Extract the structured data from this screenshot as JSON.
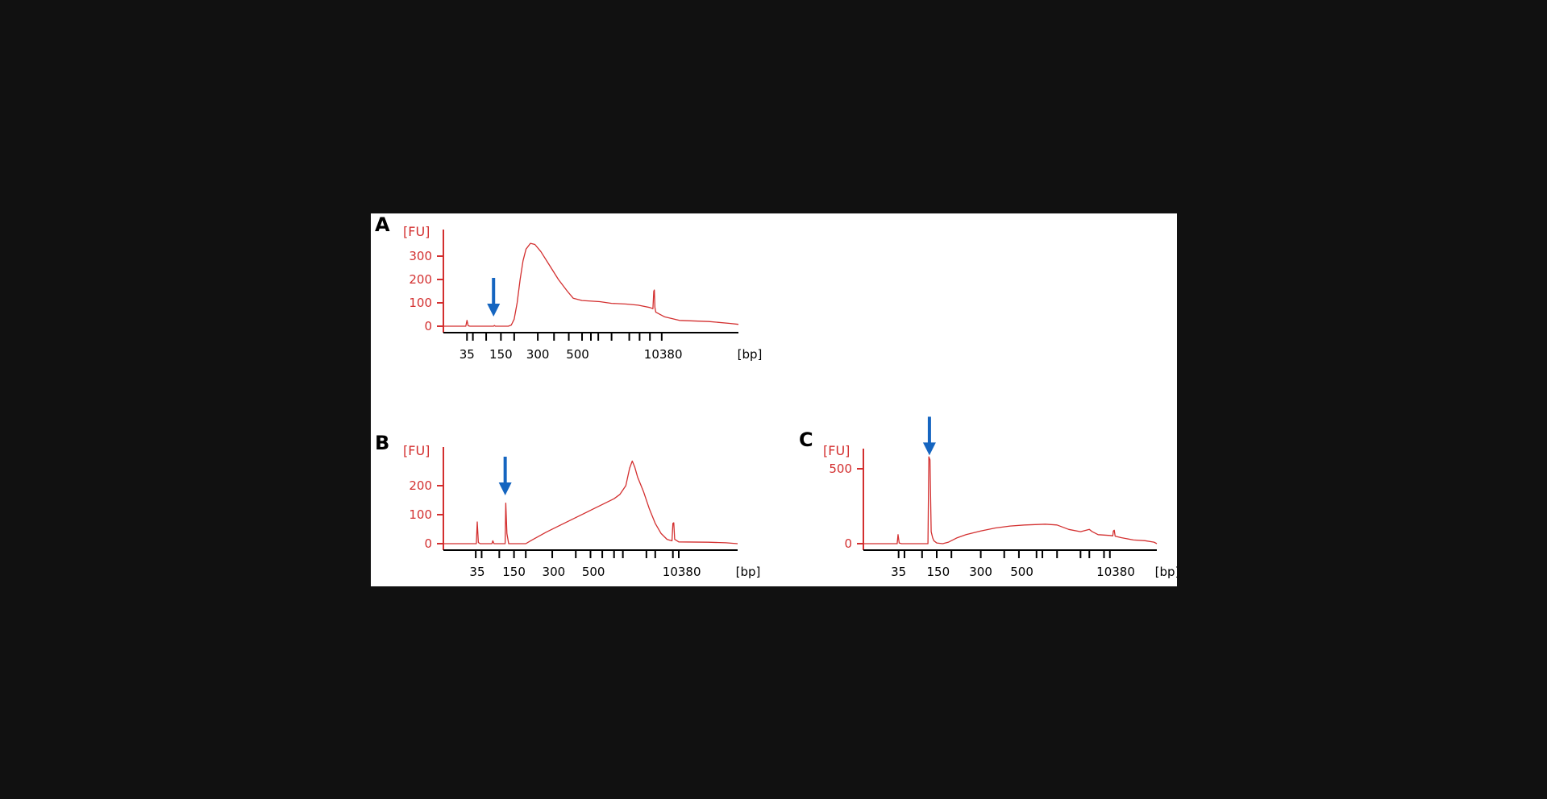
{
  "colors": {
    "page_bg": "#111111",
    "panel_bg": "#ffffff",
    "trace": "#d32f2f",
    "axis_red": "#d32f2f",
    "axis_black": "#000000",
    "arrow": "#1565c0"
  },
  "chart_data": [
    {
      "type": "line",
      "panel_label": "A",
      "y_unit_label": "[FU]",
      "x_unit_label": "[bp]",
      "ylim": [
        -20,
        400
      ],
      "yticks": [
        0,
        100,
        200,
        300
      ],
      "xlim": [
        0,
        100
      ],
      "xtick_positions": [
        8,
        10,
        14.5,
        19.5,
        24,
        32,
        37.5,
        42.5,
        47,
        50,
        52.5,
        57,
        63,
        66.5,
        70,
        74
      ],
      "xtick_labels": [
        {
          "pos": 8,
          "text": "35"
        },
        {
          "pos": 19.5,
          "text": "150"
        },
        {
          "pos": 32,
          "text": "300"
        },
        {
          "pos": 45.5,
          "text": "500"
        },
        {
          "pos": 74.5,
          "text": "10380"
        }
      ],
      "arrow_at": 17,
      "trace": [
        [
          0,
          0
        ],
        [
          7.6,
          0
        ],
        [
          8,
          25
        ],
        [
          8.4,
          2
        ],
        [
          9,
          0
        ],
        [
          17,
          0
        ],
        [
          17.3,
          3
        ],
        [
          17.6,
          0
        ],
        [
          22,
          0
        ],
        [
          23,
          5
        ],
        [
          24,
          30
        ],
        [
          25,
          100
        ],
        [
          26,
          200
        ],
        [
          27,
          280
        ],
        [
          28,
          330
        ],
        [
          29.5,
          355
        ],
        [
          31,
          350
        ],
        [
          33,
          320
        ],
        [
          36,
          260
        ],
        [
          39,
          200
        ],
        [
          42,
          150
        ],
        [
          44,
          120
        ],
        [
          47,
          110
        ],
        [
          53,
          105
        ],
        [
          57,
          98
        ],
        [
          62,
          95
        ],
        [
          66,
          90
        ],
        [
          70,
          80
        ],
        [
          71,
          75
        ],
        [
          71.3,
          150
        ],
        [
          71.5,
          155
        ],
        [
          71.7,
          80
        ],
        [
          72,
          60
        ],
        [
          75,
          40
        ],
        [
          80,
          25
        ],
        [
          90,
          20
        ],
        [
          97,
          12
        ],
        [
          100,
          8
        ]
      ]
    },
    {
      "type": "line",
      "panel_label": "B",
      "y_unit_label": "[FU]",
      "x_unit_label": "[bp]",
      "ylim": [
        -20,
        320
      ],
      "yticks": [
        0,
        100,
        200
      ],
      "xlim": [
        0,
        100
      ],
      "xtick_positions": [
        11,
        13,
        19,
        24,
        28,
        37,
        45,
        50,
        54,
        58,
        61,
        69,
        72,
        78,
        80
      ],
      "xtick_labels": [
        {
          "pos": 11.5,
          "text": "35"
        },
        {
          "pos": 24,
          "text": "150"
        },
        {
          "pos": 37.5,
          "text": "300"
        },
        {
          "pos": 51,
          "text": "500"
        },
        {
          "pos": 81,
          "text": "10380"
        }
      ],
      "arrow_at": 21,
      "trace": [
        [
          0,
          0
        ],
        [
          11.2,
          0
        ],
        [
          11.5,
          75
        ],
        [
          11.9,
          4
        ],
        [
          12.5,
          0
        ],
        [
          16.5,
          0
        ],
        [
          16.8,
          10
        ],
        [
          17.2,
          0
        ],
        [
          21,
          0
        ],
        [
          21.2,
          140
        ],
        [
          21.6,
          35
        ],
        [
          22.2,
          0
        ],
        [
          28,
          0
        ],
        [
          30,
          12
        ],
        [
          35,
          40
        ],
        [
          40,
          65
        ],
        [
          45,
          90
        ],
        [
          50,
          115
        ],
        [
          55,
          140
        ],
        [
          58,
          155
        ],
        [
          60,
          170
        ],
        [
          62,
          200
        ],
        [
          63.3,
          260
        ],
        [
          64.2,
          285
        ],
        [
          65,
          265
        ],
        [
          66,
          230
        ],
        [
          68,
          180
        ],
        [
          70,
          120
        ],
        [
          72,
          70
        ],
        [
          74,
          35
        ],
        [
          76,
          15
        ],
        [
          77,
          12
        ],
        [
          77.7,
          10
        ],
        [
          78,
          70
        ],
        [
          78.3,
          72
        ],
        [
          78.6,
          15
        ],
        [
          80,
          6
        ],
        [
          90,
          5
        ],
        [
          96,
          3
        ],
        [
          100,
          0
        ]
      ]
    },
    {
      "type": "line",
      "panel_label": "C",
      "y_unit_label": "[FU]",
      "x_unit_label": "[bp]",
      "ylim": [
        -30,
        630
      ],
      "yticks": [
        0,
        500
      ],
      "xlim": [
        0,
        100
      ],
      "xtick_positions": [
        12,
        14,
        20,
        25,
        30,
        40,
        48,
        53,
        59,
        61,
        66,
        74,
        77,
        82,
        84
      ],
      "xtick_labels": [
        {
          "pos": 12,
          "text": "35"
        },
        {
          "pos": 25.5,
          "text": "150"
        },
        {
          "pos": 40,
          "text": "300"
        },
        {
          "pos": 54,
          "text": "500"
        },
        {
          "pos": 86,
          "text": "10380"
        }
      ],
      "arrow_at": 22.5,
      "trace": [
        [
          0,
          0
        ],
        [
          11.5,
          0
        ],
        [
          11.8,
          60
        ],
        [
          12.2,
          5
        ],
        [
          13,
          0
        ],
        [
          22,
          0
        ],
        [
          22.3,
          580
        ],
        [
          22.7,
          560
        ],
        [
          23.1,
          80
        ],
        [
          23.6,
          40
        ],
        [
          24,
          20
        ],
        [
          25,
          5
        ],
        [
          27,
          0
        ],
        [
          29,
          10
        ],
        [
          32,
          40
        ],
        [
          35,
          60
        ],
        [
          40,
          85
        ],
        [
          45,
          105
        ],
        [
          50,
          118
        ],
        [
          55,
          125
        ],
        [
          62,
          130
        ],
        [
          66,
          125
        ],
        [
          70,
          95
        ],
        [
          74,
          80
        ],
        [
          77,
          95
        ],
        [
          78,
          80
        ],
        [
          80,
          60
        ],
        [
          84,
          55
        ],
        [
          85,
          52
        ],
        [
          85.2,
          85
        ],
        [
          85.5,
          90
        ],
        [
          85.8,
          50
        ],
        [
          88,
          40
        ],
        [
          92,
          25
        ],
        [
          96,
          20
        ],
        [
          99,
          10
        ],
        [
          100,
          0
        ]
      ]
    }
  ]
}
